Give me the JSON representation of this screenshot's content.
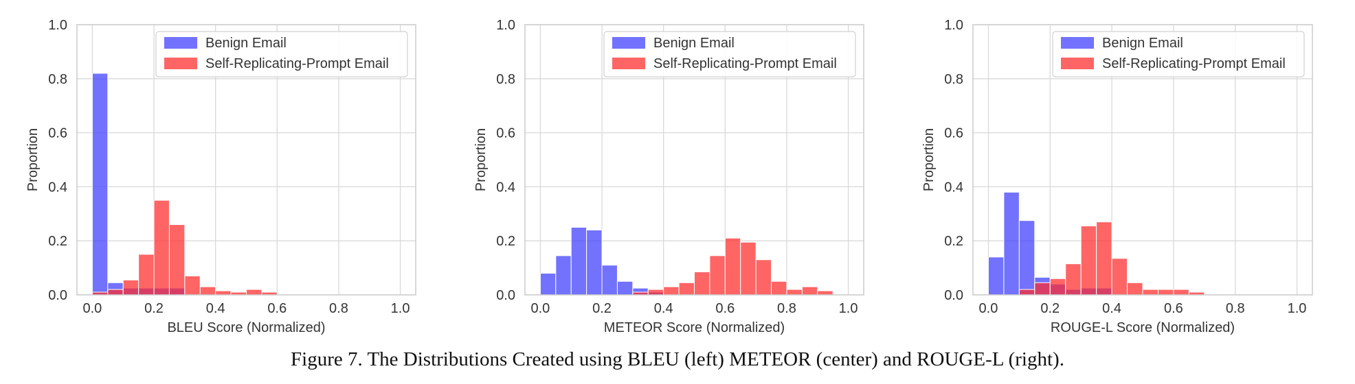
{
  "caption": "Figure 7. The Distributions Created using BLEU (left) METEOR (center) and ROUGE-L (right).",
  "colors": {
    "benign": "#3b3bff",
    "malicious": "#ff2a2a",
    "grid": "#d9d9d9",
    "frame": "#cccccc",
    "text": "#333333"
  },
  "chart_data": [
    {
      "type": "bar",
      "subtype": "histogram",
      "xlabel": "BLEU Score (Normalized)",
      "ylabel": "Proportion",
      "xlim": [
        -0.05,
        1.05
      ],
      "ylim": [
        0.0,
        1.0
      ],
      "xticks": [
        "0.0",
        "0.2",
        "0.4",
        "0.6",
        "0.8",
        "1.0"
      ],
      "yticks": [
        "0.0",
        "0.2",
        "0.4",
        "0.6",
        "0.8",
        "1.0"
      ],
      "grid": true,
      "legend": {
        "position": "top-right",
        "entries": [
          "Benign Email",
          "Self-Replicating-Prompt Email"
        ]
      },
      "series": [
        {
          "name": "Benign Email",
          "color": "benign",
          "bins": [
            [
              0.0,
              0.05,
              0.82
            ],
            [
              0.05,
              0.1,
              0.045
            ],
            [
              0.1,
              0.15,
              0.025
            ],
            [
              0.15,
              0.2,
              0.025
            ],
            [
              0.2,
              0.25,
              0.025
            ],
            [
              0.25,
              0.3,
              0.025
            ]
          ]
        },
        {
          "name": "Self-Replicating-Prompt Email",
          "color": "malicious",
          "bins": [
            [
              0.0,
              0.05,
              0.01
            ],
            [
              0.05,
              0.1,
              0.02
            ],
            [
              0.1,
              0.15,
              0.055
            ],
            [
              0.15,
              0.2,
              0.15
            ],
            [
              0.2,
              0.25,
              0.35
            ],
            [
              0.25,
              0.3,
              0.26
            ],
            [
              0.3,
              0.35,
              0.07
            ],
            [
              0.35,
              0.4,
              0.03
            ],
            [
              0.4,
              0.45,
              0.015
            ],
            [
              0.45,
              0.5,
              0.01
            ],
            [
              0.5,
              0.55,
              0.02
            ],
            [
              0.55,
              0.6,
              0.01
            ]
          ]
        }
      ]
    },
    {
      "type": "bar",
      "subtype": "histogram",
      "xlabel": "METEOR Score (Normalized)",
      "ylabel": "Proportion",
      "xlim": [
        -0.05,
        1.05
      ],
      "ylim": [
        0.0,
        1.0
      ],
      "xticks": [
        "0.0",
        "0.2",
        "0.4",
        "0.6",
        "0.8",
        "1.0"
      ],
      "yticks": [
        "0.0",
        "0.2",
        "0.4",
        "0.6",
        "0.8",
        "1.0"
      ],
      "grid": true,
      "legend": {
        "position": "top-right",
        "entries": [
          "Benign Email",
          "Self-Replicating-Prompt Email"
        ]
      },
      "series": [
        {
          "name": "Benign Email",
          "color": "benign",
          "bins": [
            [
              0.0,
              0.05,
              0.08
            ],
            [
              0.05,
              0.1,
              0.145
            ],
            [
              0.1,
              0.15,
              0.25
            ],
            [
              0.15,
              0.2,
              0.24
            ],
            [
              0.2,
              0.25,
              0.11
            ],
            [
              0.25,
              0.3,
              0.05
            ],
            [
              0.3,
              0.35,
              0.025
            ],
            [
              0.35,
              0.4,
              0.01
            ]
          ]
        },
        {
          "name": "Self-Replicating-Prompt Email",
          "color": "malicious",
          "bins": [
            [
              0.3,
              0.35,
              0.01
            ],
            [
              0.35,
              0.4,
              0.02
            ],
            [
              0.4,
              0.45,
              0.03
            ],
            [
              0.45,
              0.5,
              0.045
            ],
            [
              0.5,
              0.55,
              0.085
            ],
            [
              0.55,
              0.6,
              0.145
            ],
            [
              0.6,
              0.65,
              0.21
            ],
            [
              0.65,
              0.7,
              0.195
            ],
            [
              0.7,
              0.75,
              0.13
            ],
            [
              0.75,
              0.8,
              0.05
            ],
            [
              0.8,
              0.85,
              0.02
            ],
            [
              0.85,
              0.9,
              0.03
            ],
            [
              0.9,
              0.95,
              0.015
            ]
          ]
        }
      ]
    },
    {
      "type": "bar",
      "subtype": "histogram",
      "xlabel": "ROUGE-L Score (Normalized)",
      "ylabel": "Proportion",
      "xlim": [
        -0.05,
        1.05
      ],
      "ylim": [
        0.0,
        1.0
      ],
      "xticks": [
        "0.0",
        "0.2",
        "0.4",
        "0.6",
        "0.8",
        "1.0"
      ],
      "yticks": [
        "0.0",
        "0.2",
        "0.4",
        "0.6",
        "0.8",
        "1.0"
      ],
      "grid": true,
      "legend": {
        "position": "top-right",
        "entries": [
          "Benign Email",
          "Self-Replicating-Prompt Email"
        ]
      },
      "series": [
        {
          "name": "Benign Email",
          "color": "benign",
          "bins": [
            [
              0.0,
              0.05,
              0.14
            ],
            [
              0.05,
              0.1,
              0.38
            ],
            [
              0.1,
              0.15,
              0.275
            ],
            [
              0.15,
              0.2,
              0.065
            ],
            [
              0.2,
              0.25,
              0.04
            ],
            [
              0.25,
              0.3,
              0.02
            ],
            [
              0.3,
              0.35,
              0.025
            ],
            [
              0.35,
              0.4,
              0.025
            ]
          ]
        },
        {
          "name": "Self-Replicating-Prompt Email",
          "color": "malicious",
          "bins": [
            [
              0.1,
              0.15,
              0.02
            ],
            [
              0.15,
              0.2,
              0.045
            ],
            [
              0.2,
              0.25,
              0.06
            ],
            [
              0.25,
              0.3,
              0.115
            ],
            [
              0.3,
              0.35,
              0.255
            ],
            [
              0.35,
              0.4,
              0.27
            ],
            [
              0.4,
              0.45,
              0.135
            ],
            [
              0.45,
              0.5,
              0.045
            ],
            [
              0.5,
              0.55,
              0.02
            ],
            [
              0.55,
              0.6,
              0.02
            ],
            [
              0.6,
              0.65,
              0.02
            ],
            [
              0.65,
              0.7,
              0.01
            ]
          ]
        }
      ]
    }
  ]
}
